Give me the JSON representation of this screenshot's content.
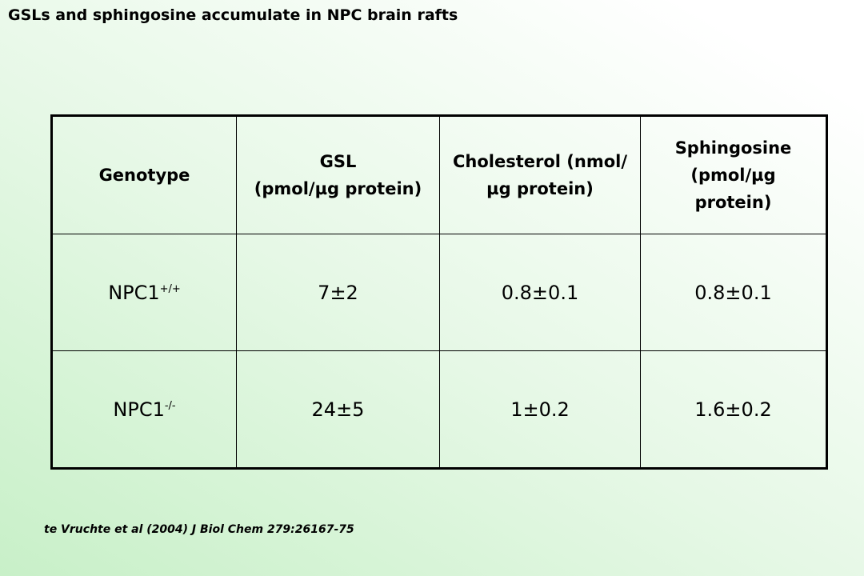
{
  "title": "GSLs and sphingosine accumulate in NPC brain rafts",
  "table": {
    "header": [
      [
        "Genotype"
      ],
      [
        "GSL",
        "(pmol/µg protein)"
      ],
      [
        "Cholesterol (nmol/µg protein)"
      ],
      [
        "Sphingosine (pmol/µg protein)"
      ]
    ],
    "rows": [
      [
        {
          "text": "NPC1",
          "sup": "+/+"
        },
        "7±2",
        "0.8±0.1",
        "0.8±0.1"
      ],
      [
        {
          "text": "NPC1",
          "sup": "-/-"
        },
        "24±5",
        "1±0.2",
        "1.6±0.2"
      ]
    ]
  },
  "citation": "te Vruchte et al (2004) J Biol Chem 279:26167-75"
}
